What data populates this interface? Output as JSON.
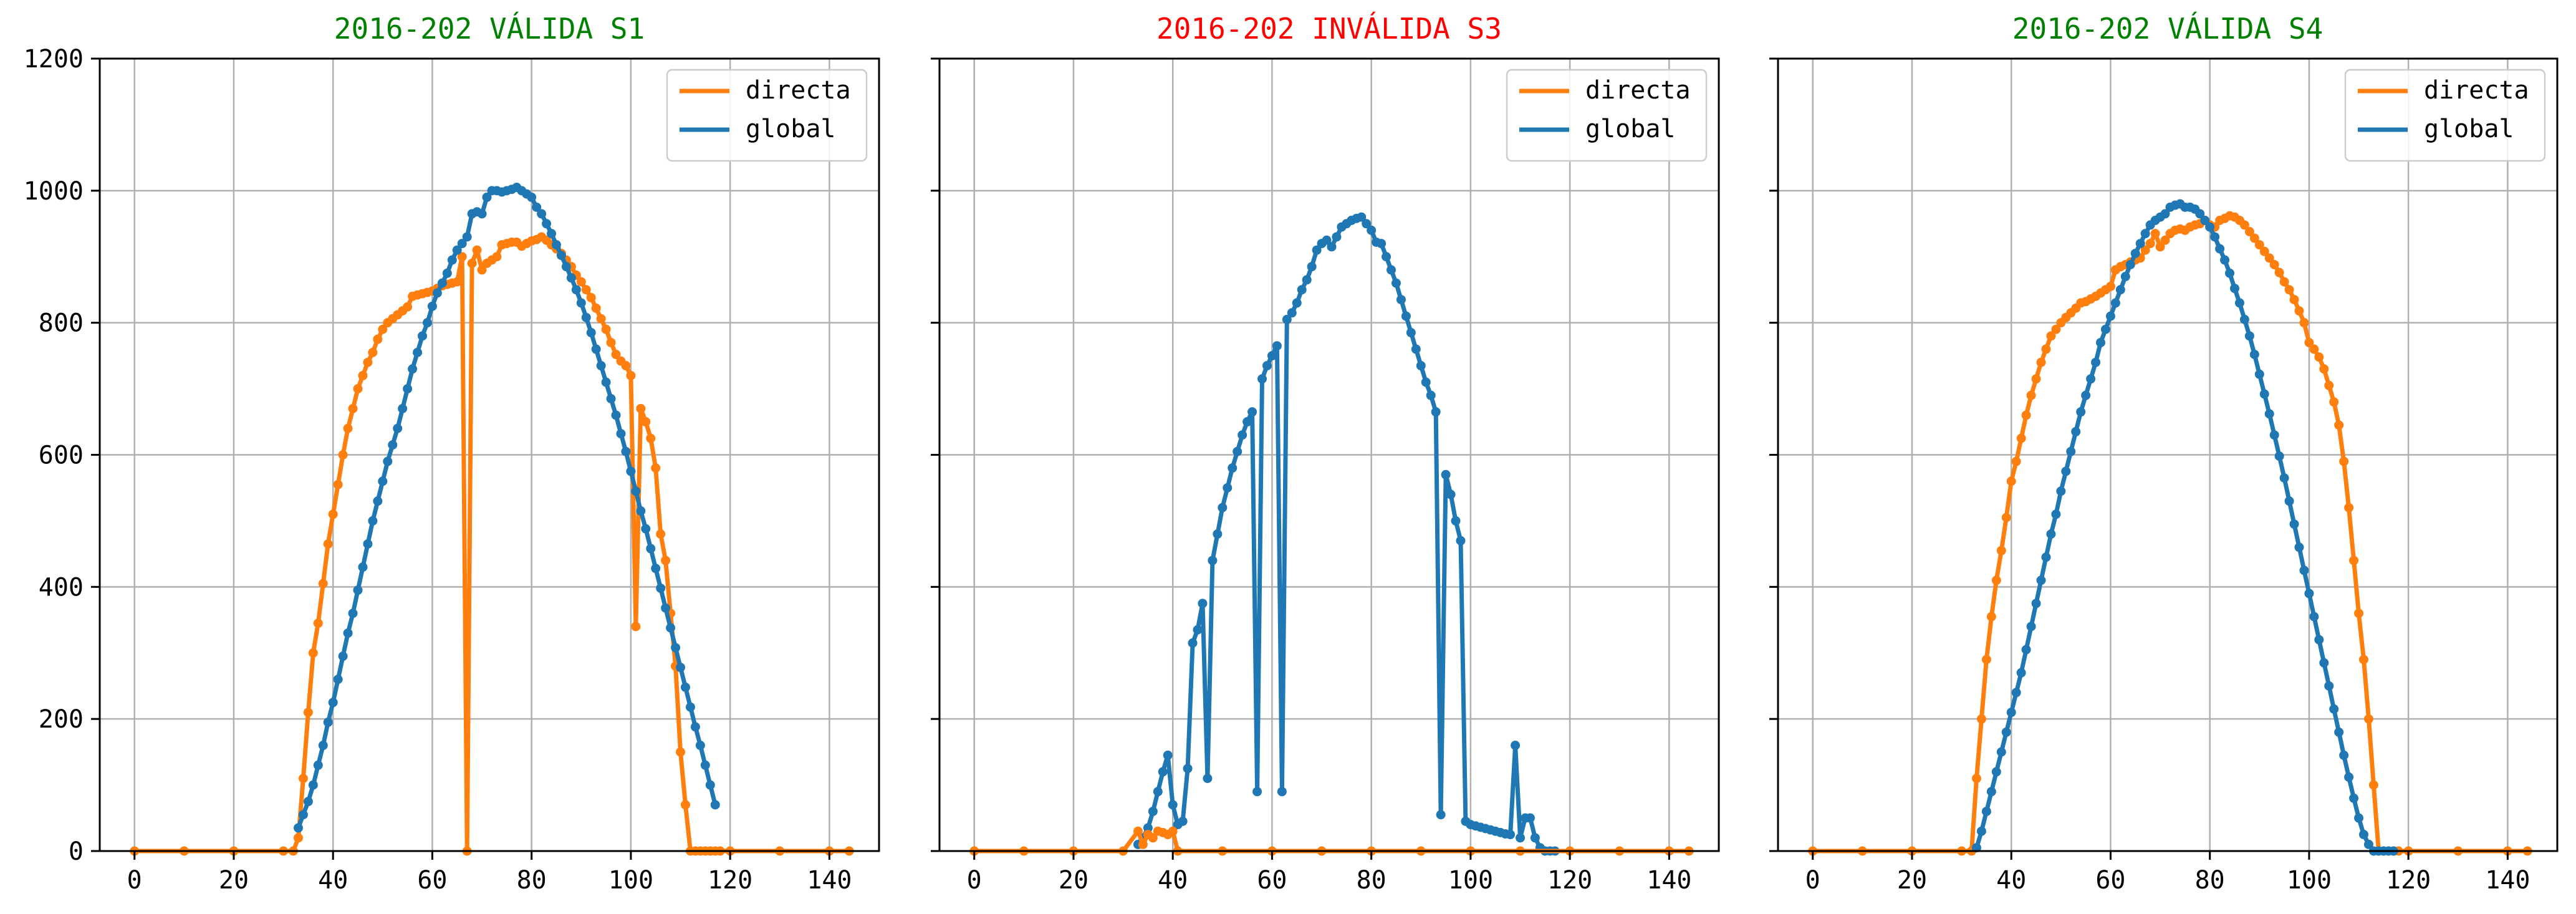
{
  "chart_data": [
    {
      "type": "line",
      "title": "2016-202 VÁLIDA S1",
      "title_color": "#008000",
      "xlabel": "",
      "ylabel": "",
      "xlim": [
        -7,
        150
      ],
      "ylim": [
        0,
        1200
      ],
      "xticks": [
        0,
        20,
        40,
        60,
        80,
        100,
        120,
        140
      ],
      "yticks": [
        0,
        200,
        400,
        600,
        800,
        1000,
        1200
      ],
      "show_y_tick_labels": true,
      "grid": true,
      "legend": {
        "position": "top-right",
        "entries": [
          "directa",
          "global"
        ]
      },
      "series": [
        {
          "name": "directa",
          "color": "#ff7f0e",
          "x": [
            0,
            10,
            20,
            30,
            32,
            33,
            34,
            35,
            36,
            37,
            38,
            39,
            40,
            41,
            42,
            43,
            44,
            45,
            46,
            47,
            48,
            49,
            50,
            51,
            52,
            53,
            54,
            55,
            56,
            57,
            58,
            59,
            60,
            61,
            62,
            63,
            64,
            65,
            66,
            67,
            68,
            69,
            70,
            71,
            72,
            73,
            74,
            75,
            76,
            77,
            78,
            79,
            80,
            81,
            82,
            83,
            84,
            85,
            86,
            87,
            88,
            89,
            90,
            91,
            92,
            93,
            94,
            95,
            96,
            97,
            98,
            99,
            100,
            101,
            102,
            103,
            104,
            105,
            106,
            107,
            108,
            109,
            110,
            111,
            112,
            113,
            114,
            115,
            116,
            117,
            118,
            120,
            130,
            140,
            144
          ],
          "y": [
            0,
            0,
            0,
            0,
            0,
            20,
            110,
            210,
            300,
            345,
            405,
            465,
            510,
            555,
            600,
            640,
            670,
            700,
            720,
            740,
            755,
            775,
            790,
            800,
            806,
            812,
            818,
            824,
            840,
            842,
            844,
            846,
            848,
            852,
            856,
            858,
            860,
            862,
            900,
            0,
            890,
            910,
            880,
            890,
            895,
            900,
            918,
            920,
            922,
            922,
            916,
            920,
            924,
            926,
            930,
            925,
            918,
            912,
            905,
            895,
            885,
            872,
            862,
            850,
            838,
            822,
            806,
            790,
            770,
            752,
            742,
            735,
            720,
            340,
            670,
            650,
            625,
            580,
            480,
            440,
            360,
            280,
            150,
            70,
            0,
            0,
            0,
            0,
            0,
            0,
            0,
            0,
            0,
            0,
            0
          ]
        },
        {
          "name": "global",
          "color": "#1f77b4",
          "x": [
            33,
            34,
            35,
            36,
            37,
            38,
            39,
            40,
            41,
            42,
            43,
            44,
            45,
            46,
            47,
            48,
            49,
            50,
            51,
            52,
            53,
            54,
            55,
            56,
            57,
            58,
            59,
            60,
            61,
            62,
            63,
            64,
            65,
            66,
            67,
            68,
            69,
            70,
            71,
            72,
            73,
            74,
            75,
            76,
            77,
            78,
            79,
            80,
            81,
            82,
            83,
            84,
            85,
            86,
            87,
            88,
            89,
            90,
            91,
            92,
            93,
            94,
            95,
            96,
            97,
            98,
            99,
            100,
            101,
            102,
            103,
            104,
            105,
            106,
            107,
            108,
            109,
            110,
            111,
            112,
            113,
            114,
            115,
            116,
            117
          ],
          "y": [
            35,
            55,
            75,
            100,
            130,
            160,
            195,
            225,
            260,
            295,
            330,
            360,
            395,
            430,
            465,
            500,
            530,
            560,
            590,
            615,
            640,
            670,
            700,
            730,
            755,
            780,
            800,
            825,
            845,
            860,
            875,
            895,
            910,
            920,
            930,
            965,
            968,
            965,
            990,
            1000,
            1000,
            998,
            1000,
            1002,
            1005,
            1000,
            995,
            990,
            975,
            965,
            950,
            935,
            918,
            902,
            885,
            868,
            850,
            830,
            808,
            785,
            760,
            735,
            710,
            685,
            660,
            632,
            605,
            575,
            545,
            515,
            488,
            458,
            428,
            398,
            368,
            338,
            308,
            278,
            248,
            218,
            188,
            160,
            130,
            100,
            70
          ]
        }
      ]
    },
    {
      "type": "line",
      "title": "2016-202 INVÁLIDA S3",
      "title_color": "#ff0000",
      "xlabel": "",
      "ylabel": "",
      "xlim": [
        -7,
        150
      ],
      "ylim": [
        0,
        1200
      ],
      "xticks": [
        0,
        20,
        40,
        60,
        80,
        100,
        120,
        140
      ],
      "yticks": [
        0,
        200,
        400,
        600,
        800,
        1000,
        1200
      ],
      "show_y_tick_labels": false,
      "grid": true,
      "legend": {
        "position": "top-right",
        "entries": [
          "directa",
          "global"
        ]
      },
      "series": [
        {
          "name": "directa",
          "color": "#ff7f0e",
          "x": [
            0,
            10,
            20,
            30,
            33,
            34,
            35,
            36,
            37,
            38,
            39,
            40,
            41,
            50,
            60,
            70,
            80,
            90,
            100,
            110,
            120,
            130,
            140,
            144
          ],
          "y": [
            0,
            0,
            0,
            0,
            30,
            10,
            25,
            20,
            30,
            28,
            25,
            30,
            0,
            0,
            0,
            0,
            0,
            0,
            0,
            0,
            0,
            0,
            0,
            0
          ],
          "draw_order": "bottom"
        },
        {
          "name": "global",
          "color": "#1f77b4",
          "x": [
            33,
            34,
            35,
            36,
            37,
            38,
            39,
            40,
            41,
            42,
            43,
            44,
            45,
            46,
            47,
            48,
            49,
            50,
            51,
            52,
            53,
            54,
            55,
            56,
            57,
            58,
            59,
            60,
            61,
            62,
            63,
            64,
            65,
            66,
            67,
            68,
            69,
            70,
            71,
            72,
            73,
            74,
            75,
            76,
            77,
            78,
            79,
            80,
            81,
            82,
            83,
            84,
            85,
            86,
            87,
            88,
            89,
            90,
            91,
            92,
            93,
            94,
            95,
            96,
            97,
            98,
            99,
            100,
            101,
            102,
            103,
            104,
            105,
            106,
            107,
            108,
            109,
            110,
            111,
            112,
            113,
            114,
            115,
            116,
            117
          ],
          "y": [
            10,
            20,
            35,
            60,
            90,
            120,
            145,
            70,
            40,
            45,
            125,
            315,
            335,
            375,
            110,
            440,
            480,
            520,
            550,
            580,
            605,
            630,
            650,
            665,
            90,
            715,
            735,
            750,
            765,
            90,
            805,
            815,
            830,
            850,
            865,
            885,
            910,
            920,
            925,
            915,
            930,
            945,
            950,
            955,
            958,
            960,
            950,
            940,
            922,
            920,
            900,
            880,
            860,
            835,
            810,
            785,
            760,
            735,
            710,
            690,
            665,
            55,
            570,
            540,
            500,
            470,
            45,
            40,
            38,
            36,
            34,
            32,
            30,
            28,
            26,
            25,
            160,
            20,
            50,
            50,
            20,
            5,
            0,
            0,
            0
          ]
        }
      ]
    },
    {
      "type": "line",
      "title": "2016-202 VÁLIDA S4",
      "title_color": "#008000",
      "xlabel": "",
      "ylabel": "",
      "xlim": [
        -7,
        150
      ],
      "ylim": [
        0,
        1200
      ],
      "xticks": [
        0,
        20,
        40,
        60,
        80,
        100,
        120,
        140
      ],
      "yticks": [
        0,
        200,
        400,
        600,
        800,
        1000,
        1200
      ],
      "show_y_tick_labels": false,
      "grid": true,
      "legend": {
        "position": "top-right",
        "entries": [
          "directa",
          "global"
        ]
      },
      "series": [
        {
          "name": "directa",
          "color": "#ff7f0e",
          "x": [
            0,
            10,
            20,
            30,
            32,
            33,
            34,
            35,
            36,
            37,
            38,
            39,
            40,
            41,
            42,
            43,
            44,
            45,
            46,
            47,
            48,
            49,
            50,
            51,
            52,
            53,
            54,
            55,
            56,
            57,
            58,
            59,
            60,
            61,
            62,
            63,
            64,
            65,
            66,
            67,
            68,
            69,
            70,
            71,
            72,
            73,
            74,
            75,
            76,
            77,
            78,
            79,
            80,
            81,
            82,
            83,
            84,
            85,
            86,
            87,
            88,
            89,
            90,
            91,
            92,
            93,
            94,
            95,
            96,
            97,
            98,
            99,
            100,
            101,
            102,
            103,
            104,
            105,
            106,
            107,
            108,
            109,
            110,
            111,
            112,
            113,
            114,
            115,
            116,
            117,
            118,
            120,
            130,
            140,
            144
          ],
          "y": [
            0,
            0,
            0,
            0,
            0,
            110,
            200,
            290,
            355,
            410,
            455,
            505,
            560,
            590,
            625,
            660,
            690,
            715,
            740,
            760,
            780,
            790,
            800,
            808,
            815,
            822,
            830,
            832,
            836,
            840,
            845,
            850,
            855,
            880,
            885,
            888,
            892,
            895,
            898,
            910,
            920,
            935,
            915,
            925,
            935,
            940,
            942,
            940,
            945,
            948,
            950,
            955,
            948,
            945,
            955,
            958,
            962,
            960,
            955,
            948,
            938,
            928,
            918,
            908,
            898,
            888,
            876,
            862,
            850,
            835,
            818,
            800,
            770,
            760,
            748,
            730,
            705,
            680,
            645,
            590,
            520,
            440,
            360,
            290,
            200,
            100,
            0,
            0,
            0,
            0,
            0,
            0,
            0,
            0,
            0
          ]
        },
        {
          "name": "global",
          "color": "#1f77b4",
          "x": [
            33,
            34,
            35,
            36,
            37,
            38,
            39,
            40,
            41,
            42,
            43,
            44,
            45,
            46,
            47,
            48,
            49,
            50,
            51,
            52,
            53,
            54,
            55,
            56,
            57,
            58,
            59,
            60,
            61,
            62,
            63,
            64,
            65,
            66,
            67,
            68,
            69,
            70,
            71,
            72,
            73,
            74,
            75,
            76,
            77,
            78,
            79,
            80,
            81,
            82,
            83,
            84,
            85,
            86,
            87,
            88,
            89,
            90,
            91,
            92,
            93,
            94,
            95,
            96,
            97,
            98,
            99,
            100,
            101,
            102,
            103,
            104,
            105,
            106,
            107,
            108,
            109,
            110,
            111,
            112,
            113,
            114,
            115,
            116,
            117
          ],
          "y": [
            5,
            30,
            60,
            90,
            120,
            150,
            180,
            210,
            240,
            270,
            305,
            340,
            375,
            410,
            445,
            480,
            510,
            545,
            575,
            605,
            635,
            665,
            690,
            715,
            740,
            770,
            790,
            810,
            830,
            850,
            870,
            888,
            905,
            920,
            935,
            948,
            955,
            960,
            965,
            975,
            978,
            980,
            975,
            975,
            972,
            965,
            955,
            945,
            930,
            912,
            895,
            875,
            852,
            830,
            805,
            780,
            752,
            722,
            692,
            662,
            630,
            598,
            565,
            530,
            495,
            460,
            425,
            390,
            355,
            320,
            285,
            250,
            215,
            180,
            145,
            112,
            80,
            50,
            25,
            10,
            0,
            0,
            0,
            0,
            0
          ]
        }
      ]
    }
  ]
}
